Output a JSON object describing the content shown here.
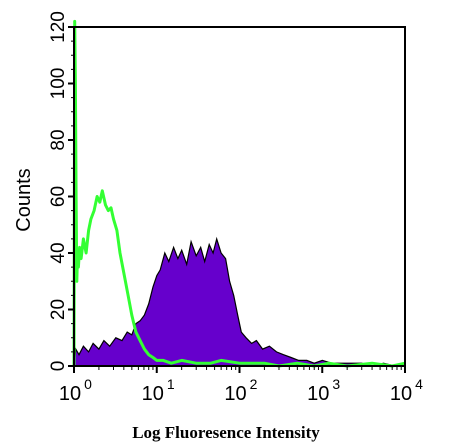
{
  "chart_data": {
    "type": "area",
    "x_scale": "log",
    "xlim": [
      1,
      10000
    ],
    "ylim": [
      0,
      120
    ],
    "xlabel": "Log Fluoresence Intensity",
    "ylabel": "Counts",
    "y_ticks": [
      "0",
      "20",
      "40",
      "60",
      "80",
      "100",
      "120"
    ],
    "x_ticks": [
      {
        "base": "10",
        "exp": "0"
      },
      {
        "base": "10",
        "exp": "1"
      },
      {
        "base": "10",
        "exp": "2"
      },
      {
        "base": "10",
        "exp": "3"
      },
      {
        "base": "10",
        "exp": "4"
      }
    ],
    "grid": false,
    "series": [
      {
        "style": "filled-area",
        "color": "#6600cc",
        "x": [
          1.0,
          1.05,
          1.15,
          1.3,
          1.5,
          1.7,
          2.0,
          2.3,
          2.7,
          3.2,
          3.8,
          4.4,
          5.0,
          5.6,
          6.3,
          7.1,
          8.0,
          9.0,
          10.0,
          11.0,
          12.5,
          14.0,
          16.0,
          18.0,
          20.0,
          23.0,
          26.0,
          30.0,
          34.0,
          38.0,
          43.0,
          48.0,
          53.0,
          60.0,
          68.0,
          76.0,
          85.0,
          95.0,
          105.0,
          120.0,
          140.0,
          160.0,
          190.0,
          230.0,
          280.0,
          340.0,
          420.0,
          520.0,
          650.0,
          800.0,
          1000.0,
          1300.0,
          1700.0,
          2200.0,
          3000.0,
          4000.0,
          5500.0,
          7500.0,
          10000.0
        ],
        "y": [
          0,
          6,
          4,
          7,
          5,
          8,
          6,
          9,
          7,
          10,
          9,
          12,
          11,
          15,
          16,
          18,
          22,
          28,
          32,
          34,
          40,
          37,
          42,
          38,
          41,
          36,
          44,
          39,
          42,
          37,
          43,
          40,
          45,
          40,
          38,
          30,
          25,
          18,
          12,
          10,
          8,
          9,
          6,
          7,
          5,
          4,
          3,
          2,
          2,
          1,
          2,
          1,
          1,
          1,
          1,
          0,
          1,
          0,
          0
        ]
      },
      {
        "style": "line",
        "color": "#33ff33",
        "x": [
          1.0,
          1.02,
          1.04,
          1.06,
          1.08,
          1.1,
          1.13,
          1.17,
          1.22,
          1.3,
          1.4,
          1.5,
          1.6,
          1.75,
          1.9,
          2.05,
          2.2,
          2.4,
          2.6,
          2.8,
          3.0,
          3.3,
          3.6,
          4.0,
          4.5,
          5.0,
          5.6,
          6.3,
          7.1,
          8.0,
          9.0,
          10.0,
          12.0,
          15.0,
          20.0,
          30.0,
          45.0,
          60.0,
          100.0,
          150.0,
          200.0,
          300.0,
          500.0,
          800.0,
          1200.0,
          2000.0,
          4000.0,
          7000.0,
          10000.0
        ],
        "y": [
          0,
          122,
          100,
          60,
          30,
          38,
          35,
          42,
          38,
          45,
          40,
          48,
          52,
          55,
          60,
          58,
          62,
          57,
          55,
          56,
          52,
          48,
          40,
          33,
          25,
          18,
          12,
          9,
          6,
          4,
          3,
          2,
          2,
          1,
          2,
          1,
          1,
          2,
          1,
          1,
          1,
          0,
          1,
          0,
          1,
          0,
          1,
          0,
          1
        ]
      }
    ]
  }
}
